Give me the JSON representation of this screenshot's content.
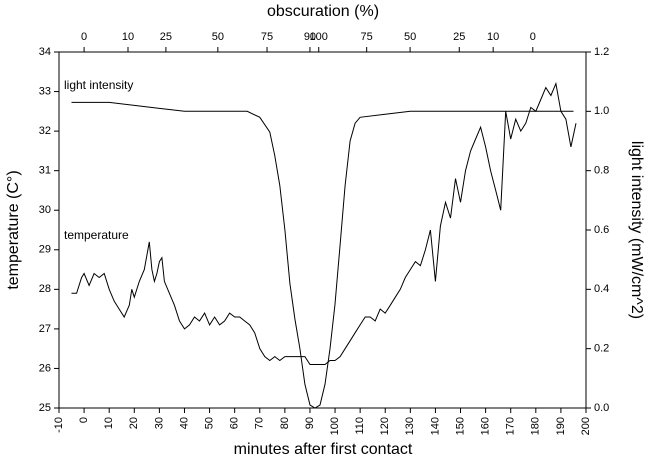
{
  "chart_data": {
    "type": "line",
    "title": "obscuration (%)",
    "x_label": "minutes after first contact",
    "y_label": "temperature (C°)",
    "y2_label": "light intensity (mW/cm^2)",
    "annotations": [
      {
        "text": "light intensity"
      },
      {
        "text": "temperature"
      }
    ],
    "xlim": [
      -10,
      200
    ],
    "xticks": [
      -10,
      0,
      10,
      20,
      30,
      40,
      50,
      60,
      70,
      80,
      90,
      100,
      110,
      120,
      130,
      140,
      150,
      160,
      170,
      180,
      190,
      200
    ],
    "x2ticks": [
      {
        "value": 0,
        "label": "0"
      },
      {
        "value": 17.5,
        "label": "10"
      },
      {
        "value": 32.6,
        "label": "25"
      },
      {
        "value": 53.3,
        "label": "50"
      },
      {
        "value": 72.9,
        "label": "75"
      },
      {
        "value": 90,
        "label": "90"
      },
      {
        "value": 93.5,
        "label": "100"
      },
      {
        "value": 112.6,
        "label": "75"
      },
      {
        "value": 129.9,
        "label": "50"
      },
      {
        "value": 149.5,
        "label": "25"
      },
      {
        "value": 163,
        "label": "10"
      },
      {
        "value": 178.8,
        "label": "0"
      }
    ],
    "ylim": [
      25,
      34
    ],
    "yticks": [
      25,
      26,
      27,
      28,
      29,
      30,
      31,
      32,
      33,
      34
    ],
    "y2lim": [
      0,
      1.2
    ],
    "y2ticks": [
      {
        "value": 0,
        "label": "0.0"
      },
      0.2,
      0.4,
      0.6,
      0.8,
      {
        "value": 1,
        "label": "1.0"
      },
      1.2
    ],
    "color": "#000000",
    "series": [
      {
        "name": "temperature",
        "x": [
          -5,
          -3,
          -1,
          0,
          2,
          4,
          6,
          8,
          10,
          12,
          14,
          16,
          18,
          19,
          20,
          22,
          24,
          26,
          27,
          28,
          29,
          30,
          31,
          32,
          34,
          36,
          38,
          40,
          42,
          44,
          46,
          48,
          50,
          52,
          54,
          56,
          58,
          60,
          62,
          64,
          66,
          68,
          70,
          72,
          74,
          76,
          78,
          80,
          82,
          84,
          86,
          88,
          90,
          92,
          94,
          96,
          98,
          100,
          102,
          104,
          106,
          108,
          110,
          112,
          114,
          116,
          118,
          120,
          122,
          124,
          126,
          128,
          130,
          132,
          134,
          136,
          138,
          140,
          142,
          144,
          146,
          148,
          150,
          152,
          154,
          156,
          158,
          160,
          162,
          164,
          166,
          168,
          170,
          172,
          174,
          176,
          178,
          180,
          182,
          184,
          186,
          188,
          190,
          192,
          194,
          196
        ],
        "values": [
          27.9,
          27.9,
          28.3,
          28.4,
          28.1,
          28.4,
          28.3,
          28.4,
          28.0,
          27.7,
          27.5,
          27.3,
          27.6,
          28.0,
          27.8,
          28.2,
          28.5,
          29.2,
          28.5,
          28.2,
          28.4,
          28.7,
          28.8,
          28.2,
          27.9,
          27.6,
          27.2,
          27.0,
          27.1,
          27.3,
          27.2,
          27.4,
          27.1,
          27.3,
          27.1,
          27.2,
          27.4,
          27.3,
          27.3,
          27.2,
          27.1,
          26.9,
          26.5,
          26.3,
          26.2,
          26.3,
          26.2,
          26.3,
          26.3,
          26.3,
          26.3,
          26.3,
          26.1,
          26.1,
          26.1,
          26.1,
          26.2,
          26.2,
          26.3,
          26.5,
          26.7,
          26.9,
          27.1,
          27.3,
          27.3,
          27.2,
          27.5,
          27.4,
          27.6,
          27.8,
          28.0,
          28.3,
          28.5,
          28.7,
          28.6,
          29.0,
          29.5,
          28.2,
          29.6,
          30.2,
          29.8,
          30.8,
          30.2,
          31.0,
          31.5,
          31.8,
          32.1,
          31.6,
          31.0,
          30.5,
          30.0,
          32.5,
          31.8,
          32.3,
          32.0,
          32.2,
          32.6,
          32.5,
          32.8,
          33.1,
          32.9,
          33.2,
          32.5,
          32.3,
          31.6,
          32.2
        ]
      },
      {
        "name": "light intensity",
        "axis": "y2",
        "x": [
          -5,
          0,
          10,
          20,
          30,
          40,
          50,
          60,
          65,
          70,
          74,
          76,
          78,
          80,
          82,
          84,
          86,
          88,
          90,
          92,
          94,
          96,
          98,
          100,
          102,
          104,
          106,
          108,
          110,
          120,
          130,
          140,
          150,
          160,
          170,
          180,
          190,
          195
        ],
        "values": [
          1.03,
          1.03,
          1.03,
          1.02,
          1.01,
          1.0,
          1.0,
          1.0,
          1.0,
          0.98,
          0.93,
          0.85,
          0.75,
          0.6,
          0.42,
          0.3,
          0.2,
          0.08,
          0.01,
          0.0,
          0.01,
          0.08,
          0.2,
          0.35,
          0.55,
          0.75,
          0.9,
          0.96,
          0.98,
          0.99,
          1.0,
          1.0,
          1.0,
          1.0,
          1.0,
          1.0,
          1.0,
          1.0
        ]
      }
    ]
  }
}
